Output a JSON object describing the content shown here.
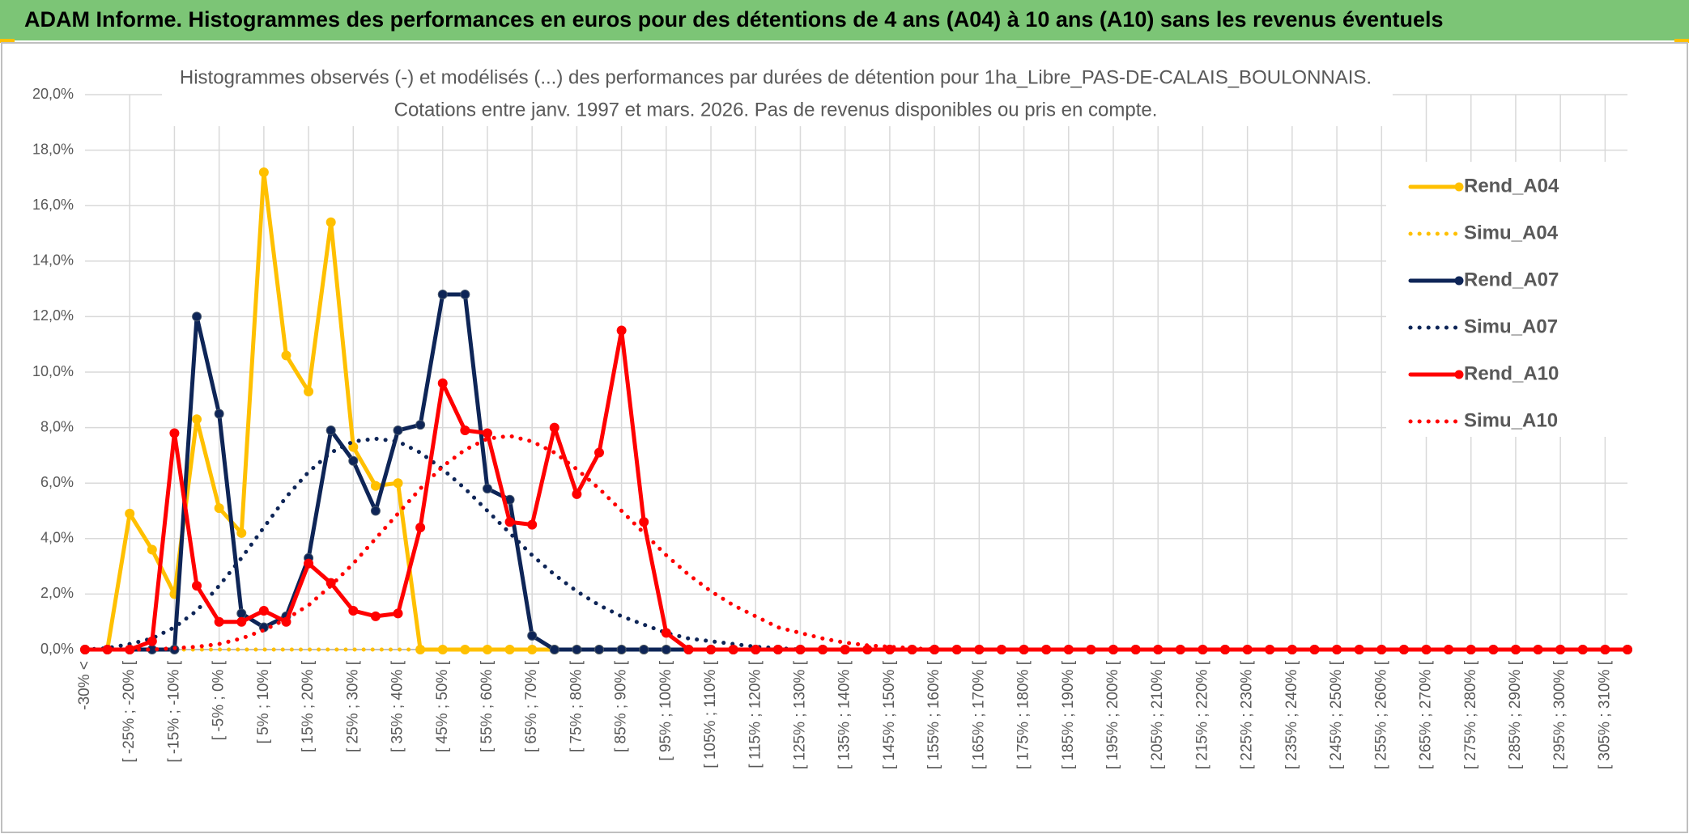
{
  "chart_data": {
    "type": "line",
    "title": "ADAM Informe. Histogrammes des performances en euros pour des détentions de 4 ans (A04) à 10 ans (A10) sans les revenus éventuels",
    "subtitle": [
      "Histogrammes observés (-) et modélisés (...) des performances par durées de détention pour 1ha_Libre_PAS-DE-CALAIS_BOULONNAIS.",
      "Cotations entre janv. 1997 et mars. 2026. Pas de revenus disponibles ou pris en compte."
    ],
    "categories": [
      "-30% <",
      null,
      "[ -25% ; -20% [",
      null,
      "[ -15% ; -10% [",
      null,
      "[ -5% ; 0% [",
      null,
      "[ 5% ; 10% [",
      null,
      "[ 15% ; 20% [",
      null,
      "[ 25% ; 30% [",
      null,
      "[ 35% ; 40% [",
      null,
      "[ 45% ; 50% [",
      null,
      "[ 55% ; 60% [",
      null,
      "[ 65% ; 70% [",
      null,
      "[ 75% ; 80% [",
      null,
      "[ 85% ; 90% [",
      null,
      "[ 95% ; 100% [",
      null,
      "[ 105% ; 110% [",
      null,
      "[ 115% ; 120% [",
      null,
      "[ 125% ; 130% [",
      null,
      "[ 135% ; 140% [",
      null,
      "[ 145% ; 150% [",
      null,
      "[ 155% ; 160% [",
      null,
      "[ 165% ; 170% [",
      null,
      "[ 175% ; 180% [",
      null,
      "[ 185% ; 190% [",
      null,
      "[ 195% ; 200% [",
      null,
      "[ 205% ; 210% [",
      null,
      "[ 215% ; 220% [",
      null,
      "[ 225% ; 230% [",
      null,
      "[ 235% ; 240% [",
      null,
      "[ 245% ; 250% [",
      null,
      "[ 255% ; 260% [",
      null,
      "[ 265% ; 270% [",
      null,
      "[ 275% ; 280% [",
      null,
      "[ 285% ; 290% [",
      null,
      "[ 295% ; 300% [",
      null,
      "[ 305% ; 310% [",
      null
    ],
    "series": [
      {
        "name": "Rend_A04",
        "color": "#FFC000",
        "style": "solid",
        "markers": true,
        "values": [
          0,
          0,
          4.9,
          3.6,
          2.0,
          8.3,
          5.1,
          4.2,
          17.2,
          10.6,
          9.3,
          15.4,
          7.3,
          5.9,
          6.0,
          0,
          0,
          0,
          0,
          0,
          0,
          0,
          0,
          0,
          0,
          0,
          0,
          0,
          0,
          0,
          0,
          0,
          0,
          0,
          0,
          0,
          0,
          0,
          0,
          0,
          0,
          0,
          0,
          0,
          0,
          0,
          0,
          0,
          0,
          0,
          0,
          0,
          0,
          0,
          0,
          0,
          0,
          0,
          0,
          0,
          0,
          0,
          0,
          0,
          0,
          0,
          0,
          0,
          0,
          0
        ]
      },
      {
        "name": "Simu_A04",
        "color": "#FFC000",
        "style": "dotted",
        "markers": false,
        "values": [
          0,
          0,
          0,
          0,
          0,
          0,
          0,
          0,
          0,
          0,
          0,
          0,
          0,
          0,
          0,
          0,
          0,
          0,
          0,
          0,
          0,
          0,
          0,
          0,
          0,
          0,
          0,
          0,
          0,
          0,
          0,
          0,
          0,
          0,
          0,
          0,
          0,
          0,
          0,
          0,
          0,
          0,
          0,
          0,
          0,
          0,
          0,
          0,
          0,
          0,
          0,
          0,
          0,
          0,
          0,
          0,
          0,
          0,
          0,
          0,
          0,
          0,
          0,
          0,
          0,
          0,
          0,
          0,
          0,
          0
        ]
      },
      {
        "name": "Rend_A07",
        "color": "#0E2557",
        "style": "solid",
        "markers": true,
        "values": [
          0,
          0,
          0,
          0,
          0,
          12.0,
          8.5,
          1.3,
          0.8,
          1.2,
          3.3,
          7.9,
          6.8,
          5.0,
          7.9,
          8.1,
          12.8,
          12.8,
          5.8,
          5.4,
          0.5,
          0,
          0,
          0,
          0,
          0,
          0,
          0,
          0,
          0,
          0,
          0,
          0,
          0,
          0,
          0,
          0,
          0,
          0,
          0,
          0,
          0,
          0,
          0,
          0,
          0,
          0,
          0,
          0,
          0,
          0,
          0,
          0,
          0,
          0,
          0,
          0,
          0,
          0,
          0,
          0,
          0,
          0,
          0,
          0,
          0,
          0,
          0,
          0,
          0
        ]
      },
      {
        "name": "Simu_A07",
        "color": "#0E2557",
        "style": "dotted",
        "markers": false,
        "values": [
          0,
          0.05,
          0.2,
          0.4,
          0.8,
          1.4,
          2.3,
          3.3,
          4.4,
          5.5,
          6.4,
          7.1,
          7.5,
          7.6,
          7.5,
          7.1,
          6.5,
          5.8,
          5.0,
          4.2,
          3.4,
          2.7,
          2.1,
          1.6,
          1.2,
          0.9,
          0.6,
          0.4,
          0.3,
          0.2,
          0.1,
          0.05,
          0,
          0,
          0,
          0,
          0,
          0,
          0,
          0,
          0,
          0,
          0,
          0,
          0,
          0,
          0,
          0,
          0,
          0,
          0,
          0,
          0,
          0,
          0,
          0,
          0,
          0,
          0,
          0,
          0,
          0,
          0,
          0,
          0,
          0,
          0,
          0,
          0,
          0
        ]
      },
      {
        "name": "Rend_A10",
        "color": "#FF0000",
        "style": "solid",
        "markers": true,
        "values": [
          0,
          0,
          0,
          0.3,
          7.8,
          2.3,
          1.0,
          1.0,
          1.4,
          1.0,
          3.1,
          2.4,
          1.4,
          1.2,
          1.3,
          4.4,
          9.6,
          7.9,
          7.8,
          4.6,
          4.5,
          8.0,
          5.6,
          7.1,
          11.5,
          4.6,
          0.6,
          0,
          0,
          0,
          0,
          0,
          0,
          0,
          0,
          0,
          0,
          0,
          0,
          0,
          0,
          0,
          0,
          0,
          0,
          0,
          0,
          0,
          0,
          0,
          0,
          0,
          0,
          0,
          0,
          0,
          0,
          0,
          0,
          0,
          0,
          0,
          0,
          0,
          0,
          0,
          0,
          0,
          0,
          0
        ]
      },
      {
        "name": "Simu_A10",
        "color": "#FF0000",
        "style": "dotted",
        "markers": false,
        "values": [
          0,
          0,
          0,
          0,
          0.05,
          0.1,
          0.2,
          0.4,
          0.7,
          1.1,
          1.6,
          2.3,
          3.1,
          4.0,
          4.9,
          5.8,
          6.6,
          7.2,
          7.6,
          7.7,
          7.5,
          7.1,
          6.5,
          5.8,
          5.0,
          4.2,
          3.4,
          2.7,
          2.1,
          1.6,
          1.2,
          0.8,
          0.6,
          0.4,
          0.25,
          0.15,
          0.1,
          0.05,
          0,
          0,
          0,
          0,
          0,
          0,
          0,
          0,
          0,
          0,
          0,
          0,
          0,
          0,
          0,
          0,
          0,
          0,
          0,
          0,
          0,
          0,
          0,
          0,
          0,
          0,
          0,
          0,
          0,
          0,
          0,
          0
        ]
      }
    ],
    "ylim": [
      0,
      20
    ],
    "yticks": [
      {
        "value": 0,
        "label": "0,0%"
      },
      {
        "value": 2,
        "label": "2,0%"
      },
      {
        "value": 4,
        "label": "4,0%"
      },
      {
        "value": 6,
        "label": "6,0%"
      },
      {
        "value": 8,
        "label": "8,0%"
      },
      {
        "value": 10,
        "label": "10,0%"
      },
      {
        "value": 12,
        "label": "12,0%"
      },
      {
        "value": 14,
        "label": "14,0%"
      },
      {
        "value": 16,
        "label": "16,0%"
      },
      {
        "value": 18,
        "label": "18,0%"
      },
      {
        "value": 20,
        "label": "20,0%"
      }
    ],
    "grid": true,
    "legend": "right"
  }
}
